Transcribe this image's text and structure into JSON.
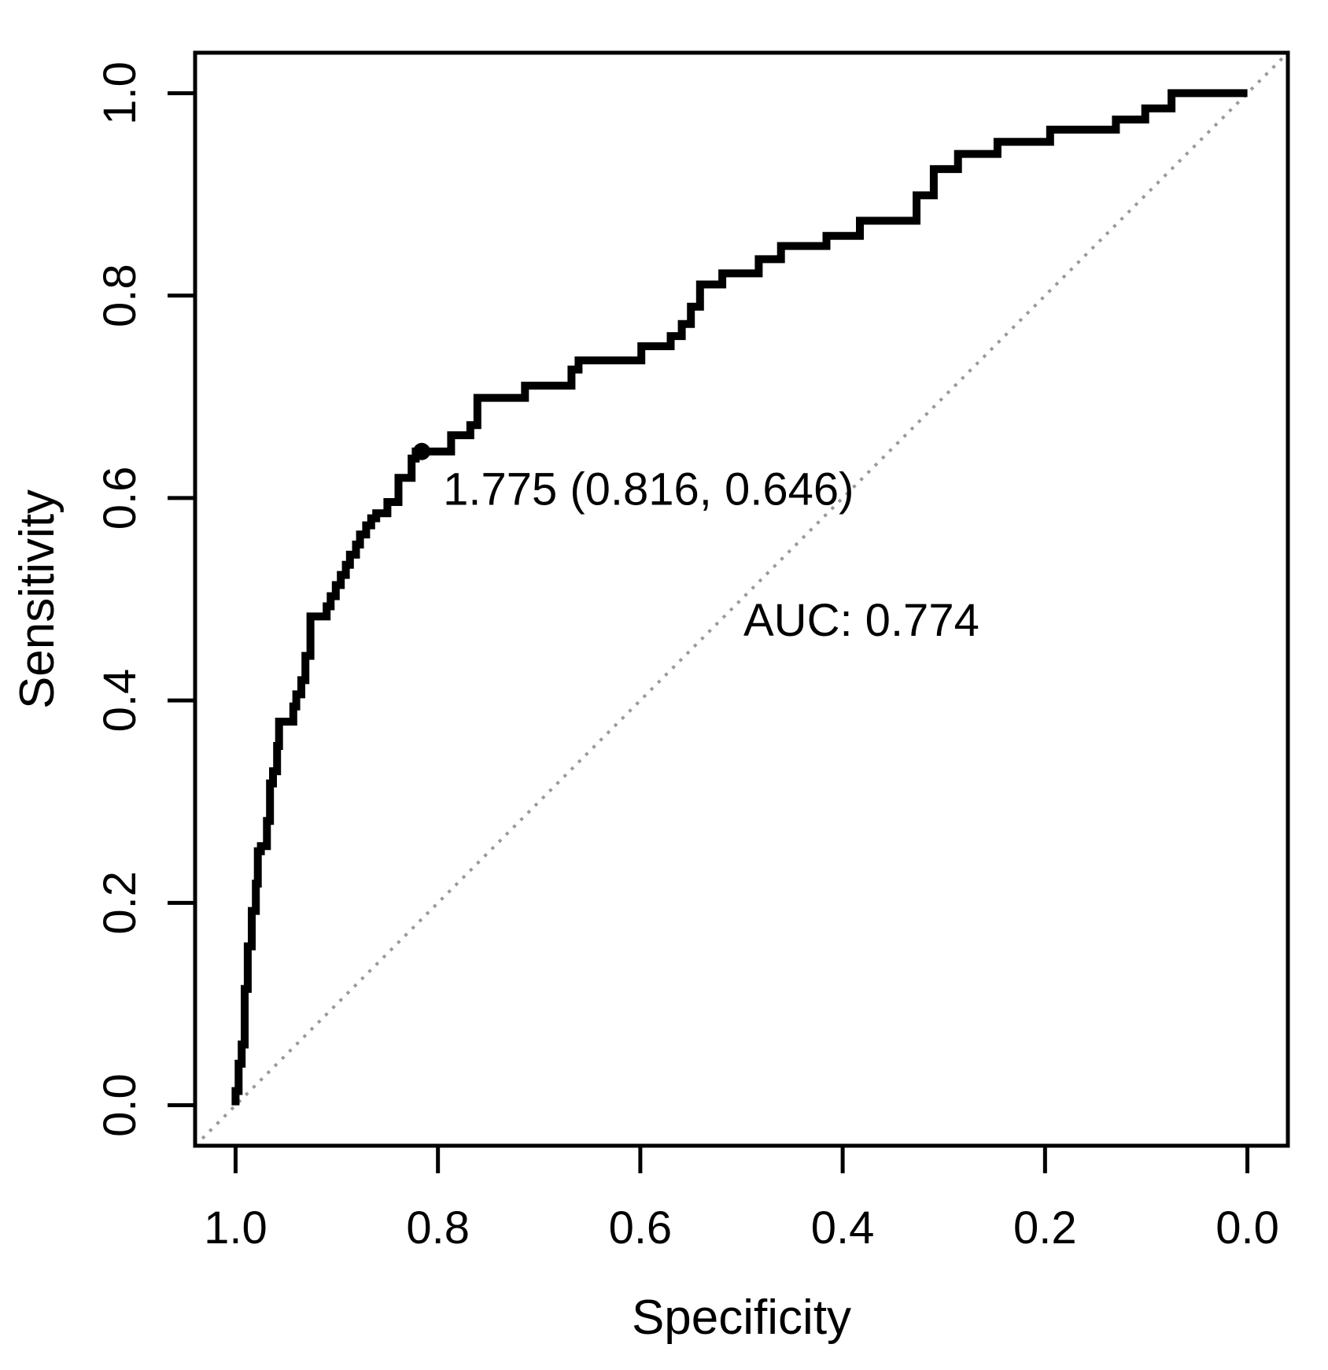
{
  "chart_data": {
    "type": "line",
    "subtype": "roc-step-curve",
    "title": "",
    "xlabel": "Specificity",
    "ylabel": "Sensitivity",
    "x_ticks": [
      "1.0",
      "0.8",
      "0.6",
      "0.4",
      "0.2",
      "0.0"
    ],
    "x_tick_values": [
      1.0,
      0.8,
      0.6,
      0.4,
      0.2,
      0.0
    ],
    "y_ticks": [
      "0.0",
      "0.2",
      "0.4",
      "0.6",
      "0.8",
      "1.0"
    ],
    "y_tick_values": [
      0.0,
      0.2,
      0.4,
      0.6,
      0.8,
      1.0
    ],
    "axis_range": {
      "x": [
        1.04,
        -0.04
      ],
      "y": [
        -0.04,
        1.04
      ]
    },
    "grid": false,
    "legend": "none",
    "diagonal_reference_line": {
      "from": [
        1.04,
        -0.04
      ],
      "to": [
        -0.04,
        1.04
      ],
      "style": "dotted"
    },
    "threshold_annotation": {
      "label": "1.775 (0.816, 0.646)",
      "threshold": 1.775,
      "specificity": 0.816,
      "sensitivity": 0.646
    },
    "auc_annotation": {
      "label": "AUC: 0.774",
      "value": 0.774
    },
    "colors": {
      "curve": "#000000",
      "diagonal": "#999999",
      "text": "#000000",
      "box": "#000000",
      "background": "#ffffff"
    },
    "roc_points": [
      [
        1.0,
        0.0
      ],
      [
        1.0,
        0.014
      ],
      [
        0.997,
        0.014
      ],
      [
        0.997,
        0.041
      ],
      [
        0.994,
        0.041
      ],
      [
        0.994,
        0.06
      ],
      [
        0.991,
        0.06
      ],
      [
        0.991,
        0.115
      ],
      [
        0.988,
        0.115
      ],
      [
        0.988,
        0.157
      ],
      [
        0.984,
        0.157
      ],
      [
        0.984,
        0.192
      ],
      [
        0.98,
        0.192
      ],
      [
        0.98,
        0.219
      ],
      [
        0.978,
        0.219
      ],
      [
        0.978,
        0.251
      ],
      [
        0.975,
        0.251
      ],
      [
        0.975,
        0.256
      ],
      [
        0.969,
        0.256
      ],
      [
        0.969,
        0.281
      ],
      [
        0.966,
        0.281
      ],
      [
        0.966,
        0.318
      ],
      [
        0.963,
        0.318
      ],
      [
        0.963,
        0.33
      ],
      [
        0.959,
        0.33
      ],
      [
        0.959,
        0.355
      ],
      [
        0.957,
        0.355
      ],
      [
        0.957,
        0.379
      ],
      [
        0.943,
        0.379
      ],
      [
        0.943,
        0.394
      ],
      [
        0.94,
        0.394
      ],
      [
        0.94,
        0.406
      ],
      [
        0.935,
        0.406
      ],
      [
        0.935,
        0.42
      ],
      [
        0.931,
        0.42
      ],
      [
        0.931,
        0.444
      ],
      [
        0.926,
        0.444
      ],
      [
        0.926,
        0.483
      ],
      [
        0.91,
        0.483
      ],
      [
        0.91,
        0.493
      ],
      [
        0.906,
        0.493
      ],
      [
        0.906,
        0.503
      ],
      [
        0.901,
        0.503
      ],
      [
        0.901,
        0.514
      ],
      [
        0.896,
        0.514
      ],
      [
        0.896,
        0.524
      ],
      [
        0.891,
        0.524
      ],
      [
        0.891,
        0.534
      ],
      [
        0.887,
        0.534
      ],
      [
        0.887,
        0.544
      ],
      [
        0.881,
        0.544
      ],
      [
        0.881,
        0.554
      ],
      [
        0.877,
        0.554
      ],
      [
        0.877,
        0.564
      ],
      [
        0.871,
        0.564
      ],
      [
        0.871,
        0.573
      ],
      [
        0.866,
        0.573
      ],
      [
        0.866,
        0.58
      ],
      [
        0.861,
        0.58
      ],
      [
        0.861,
        0.585
      ],
      [
        0.85,
        0.585
      ],
      [
        0.85,
        0.596
      ],
      [
        0.839,
        0.596
      ],
      [
        0.839,
        0.62
      ],
      [
        0.826,
        0.62
      ],
      [
        0.826,
        0.639
      ],
      [
        0.822,
        0.639
      ],
      [
        0.822,
        0.646
      ],
      [
        0.816,
        0.646
      ],
      [
        0.787,
        0.646
      ],
      [
        0.787,
        0.662
      ],
      [
        0.768,
        0.662
      ],
      [
        0.768,
        0.672
      ],
      [
        0.761,
        0.672
      ],
      [
        0.761,
        0.699
      ],
      [
        0.714,
        0.699
      ],
      [
        0.714,
        0.711
      ],
      [
        0.668,
        0.711
      ],
      [
        0.668,
        0.727
      ],
      [
        0.661,
        0.727
      ],
      [
        0.661,
        0.736
      ],
      [
        0.599,
        0.736
      ],
      [
        0.599,
        0.75
      ],
      [
        0.57,
        0.75
      ],
      [
        0.57,
        0.76
      ],
      [
        0.559,
        0.76
      ],
      [
        0.559,
        0.772
      ],
      [
        0.55,
        0.772
      ],
      [
        0.55,
        0.789
      ],
      [
        0.541,
        0.789
      ],
      [
        0.541,
        0.811
      ],
      [
        0.519,
        0.811
      ],
      [
        0.519,
        0.822
      ],
      [
        0.483,
        0.822
      ],
      [
        0.483,
        0.836
      ],
      [
        0.461,
        0.836
      ],
      [
        0.461,
        0.849
      ],
      [
        0.416,
        0.849
      ],
      [
        0.416,
        0.859
      ],
      [
        0.383,
        0.859
      ],
      [
        0.383,
        0.874
      ],
      [
        0.327,
        0.874
      ],
      [
        0.327,
        0.899
      ],
      [
        0.31,
        0.899
      ],
      [
        0.31,
        0.925
      ],
      [
        0.286,
        0.925
      ],
      [
        0.286,
        0.94
      ],
      [
        0.247,
        0.94
      ],
      [
        0.247,
        0.952
      ],
      [
        0.195,
        0.952
      ],
      [
        0.195,
        0.964
      ],
      [
        0.13,
        0.964
      ],
      [
        0.13,
        0.974
      ],
      [
        0.101,
        0.974
      ],
      [
        0.101,
        0.985
      ],
      [
        0.075,
        0.985
      ],
      [
        0.075,
        1.0
      ],
      [
        0.0,
        1.0
      ]
    ]
  }
}
